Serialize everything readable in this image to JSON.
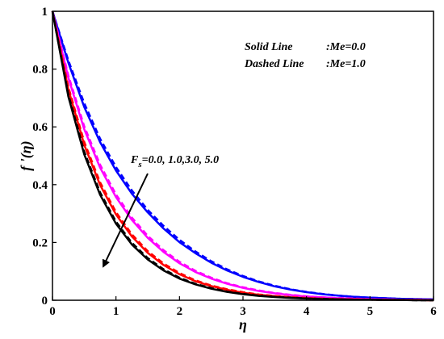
{
  "chart_data": {
    "type": "line",
    "xlabel": "η",
    "ylabel": "f '(η)",
    "xlim": [
      0,
      6
    ],
    "ylim": [
      0,
      1
    ],
    "x_ticks": [
      "0",
      "1",
      "2",
      "3",
      "4",
      "5",
      "6"
    ],
    "y_ticks": [
      "0",
      "0.2",
      "0.4",
      "0.6",
      "0.8",
      "1"
    ],
    "legend": {
      "solid_label": "Solid Line",
      "solid_value": ":Me=0.0",
      "dashed_label": "Dashed Line",
      "dashed_value": ":Me=1.0"
    },
    "annotation": {
      "prefix": "F",
      "subscript": "s",
      "values": "=0.0, 1.0,3.0, 5.0"
    },
    "grid": false,
    "x": [
      0,
      0.25,
      0.5,
      0.75,
      1,
      1.25,
      1.5,
      1.75,
      2,
      2.25,
      2.5,
      2.75,
      3,
      3.25,
      3.5,
      3.75,
      4,
      4.25,
      4.5,
      4.75,
      5,
      5.25,
      5.5,
      5.75,
      6
    ],
    "series": [
      {
        "color": "#0000ff",
        "style": "solid",
        "values": [
          1.0,
          0.822,
          0.669,
          0.547,
          0.449,
          0.369,
          0.304,
          0.248,
          0.201,
          0.163,
          0.13,
          0.103,
          0.081,
          0.063,
          0.048,
          0.037,
          0.028,
          0.021,
          0.016,
          0.012,
          0.009,
          0.007,
          0.005,
          0.004,
          0.003
        ]
      },
      {
        "color": "#0000ff",
        "style": "dashed",
        "values": [
          1.0,
          0.83,
          0.682,
          0.559,
          0.461,
          0.38,
          0.313,
          0.257,
          0.209,
          0.169,
          0.135,
          0.107,
          0.084,
          0.065,
          0.05,
          0.038,
          0.029,
          0.022,
          0.016,
          0.012,
          0.009,
          0.007,
          0.005,
          0.004,
          0.003
        ]
      },
      {
        "color": "#ff00ff",
        "style": "solid",
        "values": [
          1.0,
          0.77,
          0.592,
          0.459,
          0.357,
          0.278,
          0.216,
          0.167,
          0.128,
          0.098,
          0.075,
          0.057,
          0.043,
          0.032,
          0.024,
          0.018,
          0.013,
          0.01,
          0.007,
          0.005,
          0.004,
          0.003,
          0.002,
          0.002,
          0.001
        ]
      },
      {
        "color": "#ff00ff",
        "style": "dashed",
        "values": [
          1.0,
          0.778,
          0.602,
          0.469,
          0.366,
          0.286,
          0.223,
          0.173,
          0.133,
          0.102,
          0.078,
          0.059,
          0.045,
          0.034,
          0.025,
          0.019,
          0.014,
          0.01,
          0.008,
          0.006,
          0.004,
          0.003,
          0.002,
          0.002,
          0.001
        ]
      },
      {
        "color": "#ff0000",
        "style": "solid",
        "values": [
          1.0,
          0.73,
          0.538,
          0.399,
          0.297,
          0.221,
          0.164,
          0.122,
          0.09,
          0.066,
          0.049,
          0.036,
          0.026,
          0.019,
          0.014,
          0.01,
          0.007,
          0.005,
          0.004,
          0.003,
          0.002,
          0.001,
          0.001,
          0.001,
          0.0
        ]
      },
      {
        "color": "#ff0000",
        "style": "dashed",
        "values": [
          1.0,
          0.738,
          0.548,
          0.408,
          0.305,
          0.228,
          0.17,
          0.127,
          0.094,
          0.069,
          0.051,
          0.038,
          0.028,
          0.02,
          0.015,
          0.011,
          0.008,
          0.006,
          0.004,
          0.003,
          0.002,
          0.002,
          0.001,
          0.001,
          0.0
        ]
      },
      {
        "color": "#000000",
        "style": "solid",
        "values": [
          1.0,
          0.705,
          0.505,
          0.365,
          0.265,
          0.193,
          0.141,
          0.103,
          0.075,
          0.055,
          0.04,
          0.029,
          0.021,
          0.015,
          0.011,
          0.008,
          0.006,
          0.004,
          0.003,
          0.002,
          0.002,
          0.001,
          0.001,
          0.0,
          0.0
        ]
      },
      {
        "color": "#000000",
        "style": "dashed",
        "values": [
          1.0,
          0.712,
          0.514,
          0.373,
          0.272,
          0.199,
          0.146,
          0.107,
          0.078,
          0.057,
          0.042,
          0.03,
          0.022,
          0.016,
          0.012,
          0.009,
          0.006,
          0.005,
          0.003,
          0.002,
          0.002,
          0.001,
          0.001,
          0.0,
          0.0
        ]
      }
    ]
  }
}
